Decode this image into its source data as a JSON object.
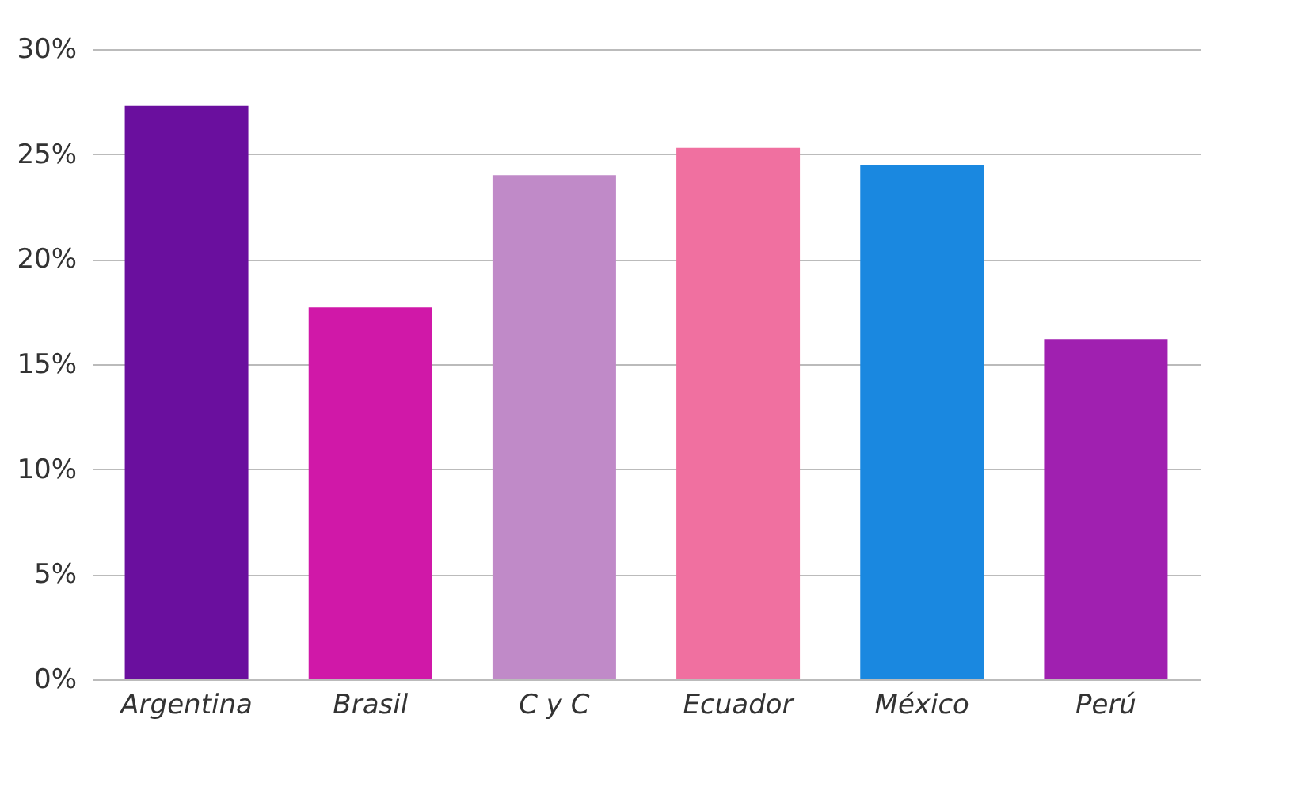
{
  "chart_data": {
    "type": "bar",
    "categories": [
      "Argentina",
      "Brasil",
      "C y C",
      "Ecuador",
      "México",
      "Perú"
    ],
    "values": [
      27.3,
      17.7,
      24.0,
      25.3,
      24.5,
      16.2
    ],
    "colors": [
      "#6a0f9e",
      "#d018a8",
      "#c08ac8",
      "#f070a0",
      "#1a88e0",
      "#a020b0"
    ],
    "ylim": [
      0,
      30
    ],
    "yticks": [
      {
        "value": 0,
        "label": "0%"
      },
      {
        "value": 5,
        "label": "5%"
      },
      {
        "value": 10,
        "label": "10%"
      },
      {
        "value": 15,
        "label": "15%"
      },
      {
        "value": 20,
        "label": "20%"
      },
      {
        "value": 25,
        "label": "25%"
      },
      {
        "value": 30,
        "label": "30%"
      }
    ],
    "grid": "y"
  }
}
